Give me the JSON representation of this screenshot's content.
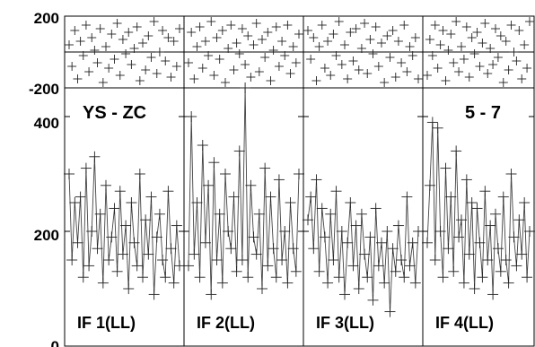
{
  "chart_data": {
    "type": "scatter",
    "baseline_label": "YS - ZC",
    "channel_label": "5 - 7",
    "phase_axis": {
      "ylim": [
        -200,
        200
      ],
      "tick_labels": [
        "200",
        "-200"
      ]
    },
    "amp_axis": {
      "ylim": [
        0,
        450
      ],
      "tick_labels": [
        "400",
        "200",
        "0"
      ]
    },
    "panels": [
      {
        "label": "IF 1(LL)",
        "amp": [
          300,
          150,
          250,
          180,
          260,
          120,
          310,
          140,
          200,
          330,
          170,
          230,
          110,
          280,
          150,
          190,
          240,
          130,
          270,
          160,
          210,
          100,
          250,
          180,
          140,
          300,
          120,
          220,
          160,
          260,
          90,
          190,
          230,
          150,
          120,
          270,
          170,
          110,
          210,
          140
        ],
        "phase": [
          40,
          -80,
          120,
          -150,
          60,
          -20,
          150,
          -110,
          80,
          10,
          -60,
          130,
          -170,
          30,
          -90,
          100,
          -40,
          160,
          -130,
          70,
          -10,
          110,
          -70,
          20,
          140,
          -160,
          50,
          -100,
          90,
          -30,
          170,
          -120,
          0,
          120,
          -50,
          80,
          -140,
          60,
          -80,
          130
        ]
      },
      {
        "label": "IF 2(LL)",
        "amp": [
          140,
          400,
          160,
          250,
          120,
          350,
          180,
          280,
          90,
          320,
          150,
          230,
          110,
          300,
          200,
          170,
          260,
          130,
          340,
          150,
          450,
          120,
          280,
          190,
          160,
          230,
          100,
          310,
          140,
          260,
          170,
          120,
          290,
          150,
          200,
          110,
          250,
          170,
          130,
          300
        ],
        "phase": [
          -60,
          110,
          -150,
          30,
          140,
          -90,
          60,
          -20,
          170,
          -130,
          80,
          -40,
          120,
          -170,
          20,
          150,
          -100,
          50,
          -10,
          130,
          -70,
          90,
          -140,
          40,
          160,
          -110,
          70,
          -30,
          110,
          -160,
          10,
          140,
          -80,
          60,
          -20,
          150,
          -120,
          30,
          -60,
          100
        ]
      },
      {
        "label": "IF 3(LL)",
        "amp": [
          220,
          260,
          170,
          290,
          130,
          240,
          190,
          110,
          230,
          150,
          270,
          120,
          200,
          90,
          180,
          250,
          140,
          210,
          100,
          230,
          160,
          120,
          190,
          80,
          240,
          140,
          180,
          110,
          200,
          60,
          170,
          130,
          210,
          150,
          120,
          260,
          140,
          180,
          110,
          200
        ],
        "phase": [
          120,
          -40,
          80,
          -160,
          30,
          150,
          -90,
          60,
          -130,
          100,
          -20,
          170,
          -70,
          40,
          -150,
          110,
          -50,
          130,
          -100,
          20,
          160,
          -120,
          70,
          -10,
          140,
          -80,
          50,
          -170,
          90,
          -30,
          120,
          -140,
          60,
          -60,
          150,
          -110,
          30,
          -20,
          80,
          -150
        ]
      },
      {
        "label": "IF 4(LL)",
        "amp": [
          180,
          280,
          390,
          150,
          380,
          200,
          120,
          310,
          170,
          260,
          130,
          340,
          190,
          220,
          110,
          290,
          160,
          250,
          100,
          240,
          180,
          120,
          270,
          150,
          210,
          90,
          230,
          170,
          130,
          260,
          150,
          110,
          300,
          190,
          140,
          220,
          160,
          250,
          120,
          200
        ],
        "phase": [
          -130,
          70,
          -20,
          150,
          -90,
          40,
          120,
          -160,
          10,
          100,
          -60,
          170,
          -110,
          30,
          -40,
          140,
          -140,
          80,
          -10,
          110,
          -80,
          50,
          160,
          -120,
          20,
          -70,
          130,
          -30,
          90,
          -170,
          60,
          -100,
          150,
          0,
          -50,
          120,
          -150,
          40,
          -90,
          170
        ]
      }
    ]
  }
}
